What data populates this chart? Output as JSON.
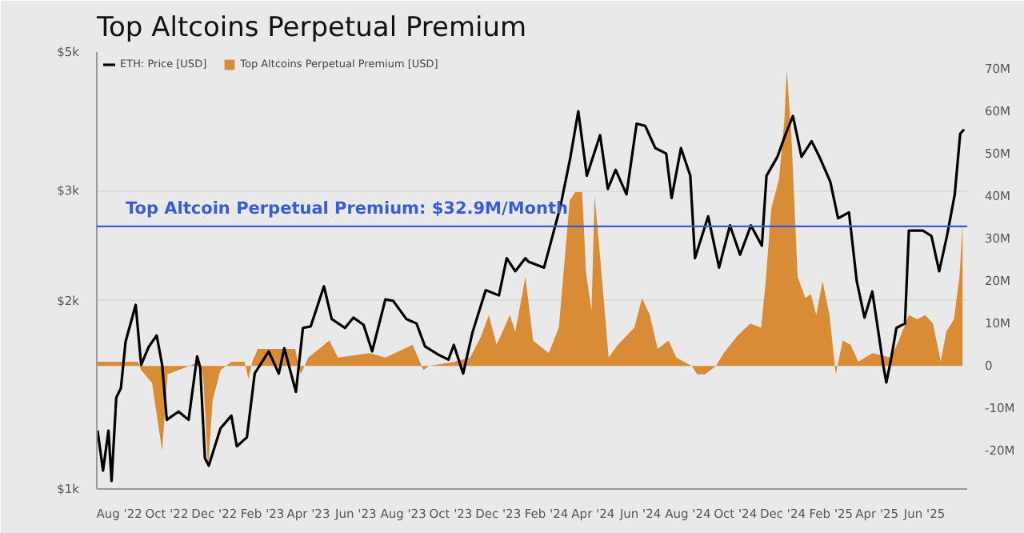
{
  "chart_data": {
    "type": "line",
    "title": "Top Altcoins Perpetual Premium",
    "log": "y",
    "grid": "y",
    "legend": "top left",
    "xlim": [
      "2022-07-03",
      "2025-07-26"
    ],
    "xticks": [
      {
        "value": "2022-08-01",
        "label": "Aug '22"
      },
      {
        "value": "2022-10-01",
        "label": "Oct '22"
      },
      {
        "value": "2022-12-01",
        "label": "Dec '22"
      },
      {
        "value": "2023-02-01",
        "label": "Feb '23"
      },
      {
        "value": "2023-04-01",
        "label": "Apr '23"
      },
      {
        "value": "2023-06-01",
        "label": "Jun '23"
      },
      {
        "value": "2023-08-01",
        "label": "Aug '23"
      },
      {
        "value": "2023-10-01",
        "label": "Oct '23"
      },
      {
        "value": "2023-12-01",
        "label": "Dec '23"
      },
      {
        "value": "2024-02-01",
        "label": "Feb '24"
      },
      {
        "value": "2024-04-01",
        "label": "Apr '24"
      },
      {
        "value": "2024-06-01",
        "label": "Jun '24"
      },
      {
        "value": "2024-08-01",
        "label": "Aug '24"
      },
      {
        "value": "2024-10-01",
        "label": "Oct '24"
      },
      {
        "value": "2024-12-01",
        "label": "Dec '24"
      },
      {
        "value": "2025-02-01",
        "label": "Feb '25"
      },
      {
        "value": "2025-04-01",
        "label": "Apr '25"
      },
      {
        "value": "2025-06-01",
        "label": "Jun '25"
      }
    ],
    "ylim": [
      1000,
      5000
    ],
    "yticks": [
      {
        "value": 1000,
        "label": "$1k"
      },
      {
        "value": 2000,
        "label": "$2k"
      },
      {
        "value": 3000,
        "label": "$3k"
      },
      {
        "value": 5000,
        "label": "$5k"
      }
    ],
    "y2lim": [
      -29,
      74
    ],
    "y2ticks": [
      {
        "value": -20,
        "label": "-20M"
      },
      {
        "value": -10,
        "label": "-10M"
      },
      0,
      {
        "value": 10,
        "label": "10M"
      },
      {
        "value": 20,
        "label": "20M"
      },
      {
        "value": 30,
        "label": "30M"
      },
      {
        "value": 40,
        "label": "40M"
      },
      {
        "value": 50,
        "label": "50M"
      },
      {
        "value": 60,
        "label": "60M"
      },
      {
        "value": 70,
        "label": "70M"
      }
    ],
    "ref_lines": [
      {
        "axis": "y2",
        "value": 32.9,
        "label": "Top Altcoin Perpetual Premium: $32.9M/Month",
        "color": "#3a5bd9"
      }
    ],
    "series": [
      {
        "name": "Top Altcoins Perpetual Premium [USD]",
        "type": "area",
        "axis": "y2",
        "color": "#d98c36",
        "x": [
          "2022-07-04",
          "2022-07-29",
          "2022-08-25",
          "2022-08-29",
          "2022-09-12",
          "2022-09-25",
          "2022-10-02",
          "2022-10-16",
          "2022-11-13",
          "2022-11-17",
          "2022-11-23",
          "2022-11-29",
          "2022-12-09",
          "2022-12-23",
          "2023-01-09",
          "2023-01-14",
          "2023-01-19",
          "2023-01-26",
          "2023-03-15",
          "2023-03-22",
          "2023-04-01",
          "2023-04-28",
          "2023-05-09",
          "2023-06-19",
          "2023-07-09",
          "2023-08-13",
          "2023-08-27",
          "2023-09-03",
          "2023-10-06",
          "2023-10-26",
          "2023-11-09",
          "2023-11-19",
          "2023-11-29",
          "2023-12-16",
          "2023-12-23",
          "2024-01-05",
          "2024-01-15",
          "2024-02-04",
          "2024-02-17",
          "2024-03-02",
          "2024-03-09",
          "2024-03-18",
          "2024-03-23",
          "2024-03-30",
          "2024-04-03",
          "2024-04-09",
          "2024-04-21",
          "2024-05-03",
          "2024-05-24",
          "2024-06-03",
          "2024-06-13",
          "2024-06-23",
          "2024-07-07",
          "2024-07-17",
          "2024-08-06",
          "2024-08-13",
          "2024-08-23",
          "2024-09-06",
          "2024-09-16",
          "2024-10-03",
          "2024-10-20",
          "2024-11-03",
          "2024-11-09",
          "2024-11-16",
          "2024-11-26",
          "2024-12-03",
          "2024-12-06",
          "2024-12-12",
          "2024-12-20",
          "2024-12-30",
          "2025-01-06",
          "2025-01-13",
          "2025-01-21",
          "2025-01-30",
          "2025-02-07",
          "2025-02-16",
          "2025-02-26",
          "2025-03-08",
          "2025-03-26",
          "2025-04-19",
          "2025-04-29",
          "2025-05-12",
          "2025-05-23",
          "2025-06-02",
          "2025-06-12",
          "2025-06-22",
          "2025-06-29",
          "2025-07-09",
          "2025-07-16",
          "2025-07-20"
        ],
        "values": [
          1,
          1,
          1,
          -1,
          -4,
          -20,
          -2,
          -1,
          1,
          -3,
          -24,
          -8,
          -1,
          1,
          1,
          -3,
          1,
          4,
          4,
          -2,
          2,
          6,
          2,
          3,
          2,
          5,
          -1,
          0,
          1,
          2,
          7,
          12,
          5,
          12,
          8,
          21,
          6,
          3,
          9,
          39,
          41,
          41,
          22,
          13,
          40,
          28,
          2,
          5,
          9,
          16,
          12,
          4,
          6,
          2,
          0,
          -2,
          -2,
          0,
          3,
          7,
          10,
          9,
          20,
          37,
          44,
          58,
          70,
          54,
          21,
          16,
          17,
          12,
          20,
          12,
          -2,
          6,
          5,
          1,
          3,
          2,
          6,
          12,
          11,
          12,
          10,
          1,
          8,
          11,
          21,
          33
        ]
      },
      {
        "name": "ETH: Price [USD]",
        "color": "#000000",
        "x": [
          "2022-07-04",
          "2022-07-11",
          "2022-07-18",
          "2022-07-22",
          "2022-07-28",
          "2022-08-03",
          "2022-08-09",
          "2022-08-22",
          "2022-08-29",
          "2022-09-08",
          "2022-09-18",
          "2022-09-25",
          "2022-10-01",
          "2022-10-16",
          "2022-10-29",
          "2022-11-09",
          "2022-11-13",
          "2022-11-19",
          "2022-11-24",
          "2022-12-09",
          "2022-12-23",
          "2022-12-30",
          "2023-01-12",
          "2023-01-22",
          "2023-02-09",
          "2023-02-22",
          "2023-03-01",
          "2023-03-16",
          "2023-03-25",
          "2023-04-04",
          "2023-04-21",
          "2023-05-01",
          "2023-05-18",
          "2023-05-29",
          "2023-06-11",
          "2023-06-22",
          "2023-07-09",
          "2023-07-19",
          "2023-08-05",
          "2023-08-18",
          "2023-08-29",
          "2023-09-15",
          "2023-09-28",
          "2023-10-05",
          "2023-10-17",
          "2023-10-29",
          "2023-11-15",
          "2023-12-02",
          "2023-12-12",
          "2023-12-23",
          "2024-01-05",
          "2024-01-09",
          "2024-01-29",
          "2024-02-19",
          "2024-03-03",
          "2024-03-13",
          "2024-03-24",
          "2024-04-10",
          "2024-04-20",
          "2024-04-30",
          "2024-05-14",
          "2024-05-27",
          "2024-06-07",
          "2024-06-20",
          "2024-07-04",
          "2024-07-11",
          "2024-07-23",
          "2024-08-04",
          "2024-08-10",
          "2024-08-27",
          "2024-09-10",
          "2024-09-24",
          "2024-10-07",
          "2024-10-21",
          "2024-11-04",
          "2024-11-10",
          "2024-11-24",
          "2024-12-04",
          "2024-12-14",
          "2024-12-25",
          "2025-01-07",
          "2025-01-17",
          "2025-01-31",
          "2025-02-10",
          "2025-02-24",
          "2025-03-06",
          "2025-03-16",
          "2025-03-26",
          "2025-04-02",
          "2025-04-09",
          "2025-04-13",
          "2025-04-19",
          "2025-04-26",
          "2025-05-07",
          "2025-05-12",
          "2025-05-30",
          "2025-06-10",
          "2025-06-20",
          "2025-06-30",
          "2025-07-10",
          "2025-07-17",
          "2025-07-22"
        ],
        "values": [
          1240,
          1070,
          1240,
          1030,
          1400,
          1450,
          1720,
          1970,
          1580,
          1690,
          1760,
          1580,
          1290,
          1330,
          1290,
          1630,
          1560,
          1120,
          1090,
          1250,
          1310,
          1170,
          1210,
          1530,
          1660,
          1530,
          1680,
          1430,
          1810,
          1820,
          2110,
          1870,
          1810,
          1880,
          1830,
          1660,
          2010,
          2000,
          1870,
          1840,
          1690,
          1640,
          1610,
          1700,
          1530,
          1780,
          2080,
          2040,
          2340,
          2230,
          2340,
          2310,
          2260,
          2830,
          3400,
          4020,
          3170,
          3680,
          3020,
          3240,
          2960,
          3840,
          3810,
          3510,
          3440,
          2920,
          3510,
          3170,
          2340,
          2730,
          2260,
          2640,
          2370,
          2640,
          2450,
          3170,
          3400,
          3680,
          3950,
          3400,
          3600,
          3400,
          3100,
          2710,
          2770,
          2150,
          1880,
          2070,
          1810,
          1580,
          1480,
          1610,
          1810,
          1840,
          2590,
          2590,
          2540,
          2230,
          2540,
          2960,
          3700,
          3760
        ]
      }
    ]
  }
}
